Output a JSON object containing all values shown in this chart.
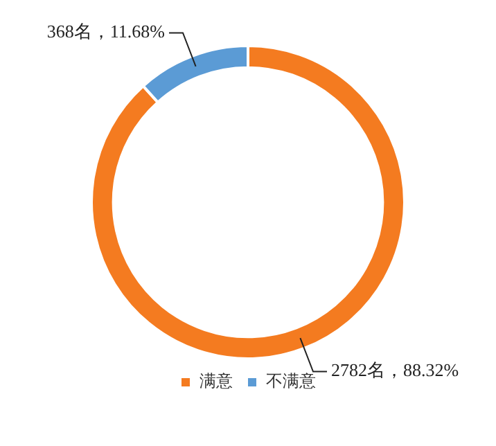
{
  "chart_data": {
    "type": "donut",
    "categories": [
      "满意",
      "不满意"
    ],
    "values": [
      2782,
      368
    ],
    "colors": [
      "#f47b20",
      "#5b9bd5"
    ],
    "value_labels": [
      "2782名，88.32%",
      "368名，11.68%"
    ],
    "legend": "bottom"
  }
}
